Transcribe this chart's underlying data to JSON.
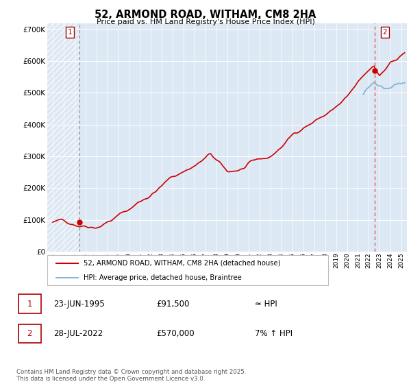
{
  "title": "52, ARMOND ROAD, WITHAM, CM8 2HA",
  "subtitle": "Price paid vs. HM Land Registry's House Price Index (HPI)",
  "ylim": [
    0,
    720000
  ],
  "yticks": [
    0,
    100000,
    200000,
    300000,
    400000,
    500000,
    600000,
    700000
  ],
  "xlim_start": 1992.5,
  "xlim_end": 2025.5,
  "bg_color": "#dde8f5",
  "hatch_color": "#b0c4de",
  "grid_color": "#ffffff",
  "sale1_year": 1995.48,
  "sale1_price": 91500,
  "sale2_year": 2022.57,
  "sale2_price": 570000,
  "legend_label1": "52, ARMOND ROAD, WITHAM, CM8 2HA (detached house)",
  "legend_label2": "HPI: Average price, detached house, Braintree",
  "annotation1_label": "1",
  "annotation2_label": "2",
  "table_row1": [
    "1",
    "23-JUN-1995",
    "£91,500",
    "≈ HPI"
  ],
  "table_row2": [
    "2",
    "28-JUL-2022",
    "£570,000",
    "7% ↑ HPI"
  ],
  "footnote": "Contains HM Land Registry data © Crown copyright and database right 2025.\nThis data is licensed under the Open Government Licence v3.0.",
  "line_color": "#cc0000",
  "hpi_color": "#7aadcf",
  "sale_marker_color": "#cc0000",
  "dashed1_color": "#999999",
  "dashed2_color": "#dd4444"
}
